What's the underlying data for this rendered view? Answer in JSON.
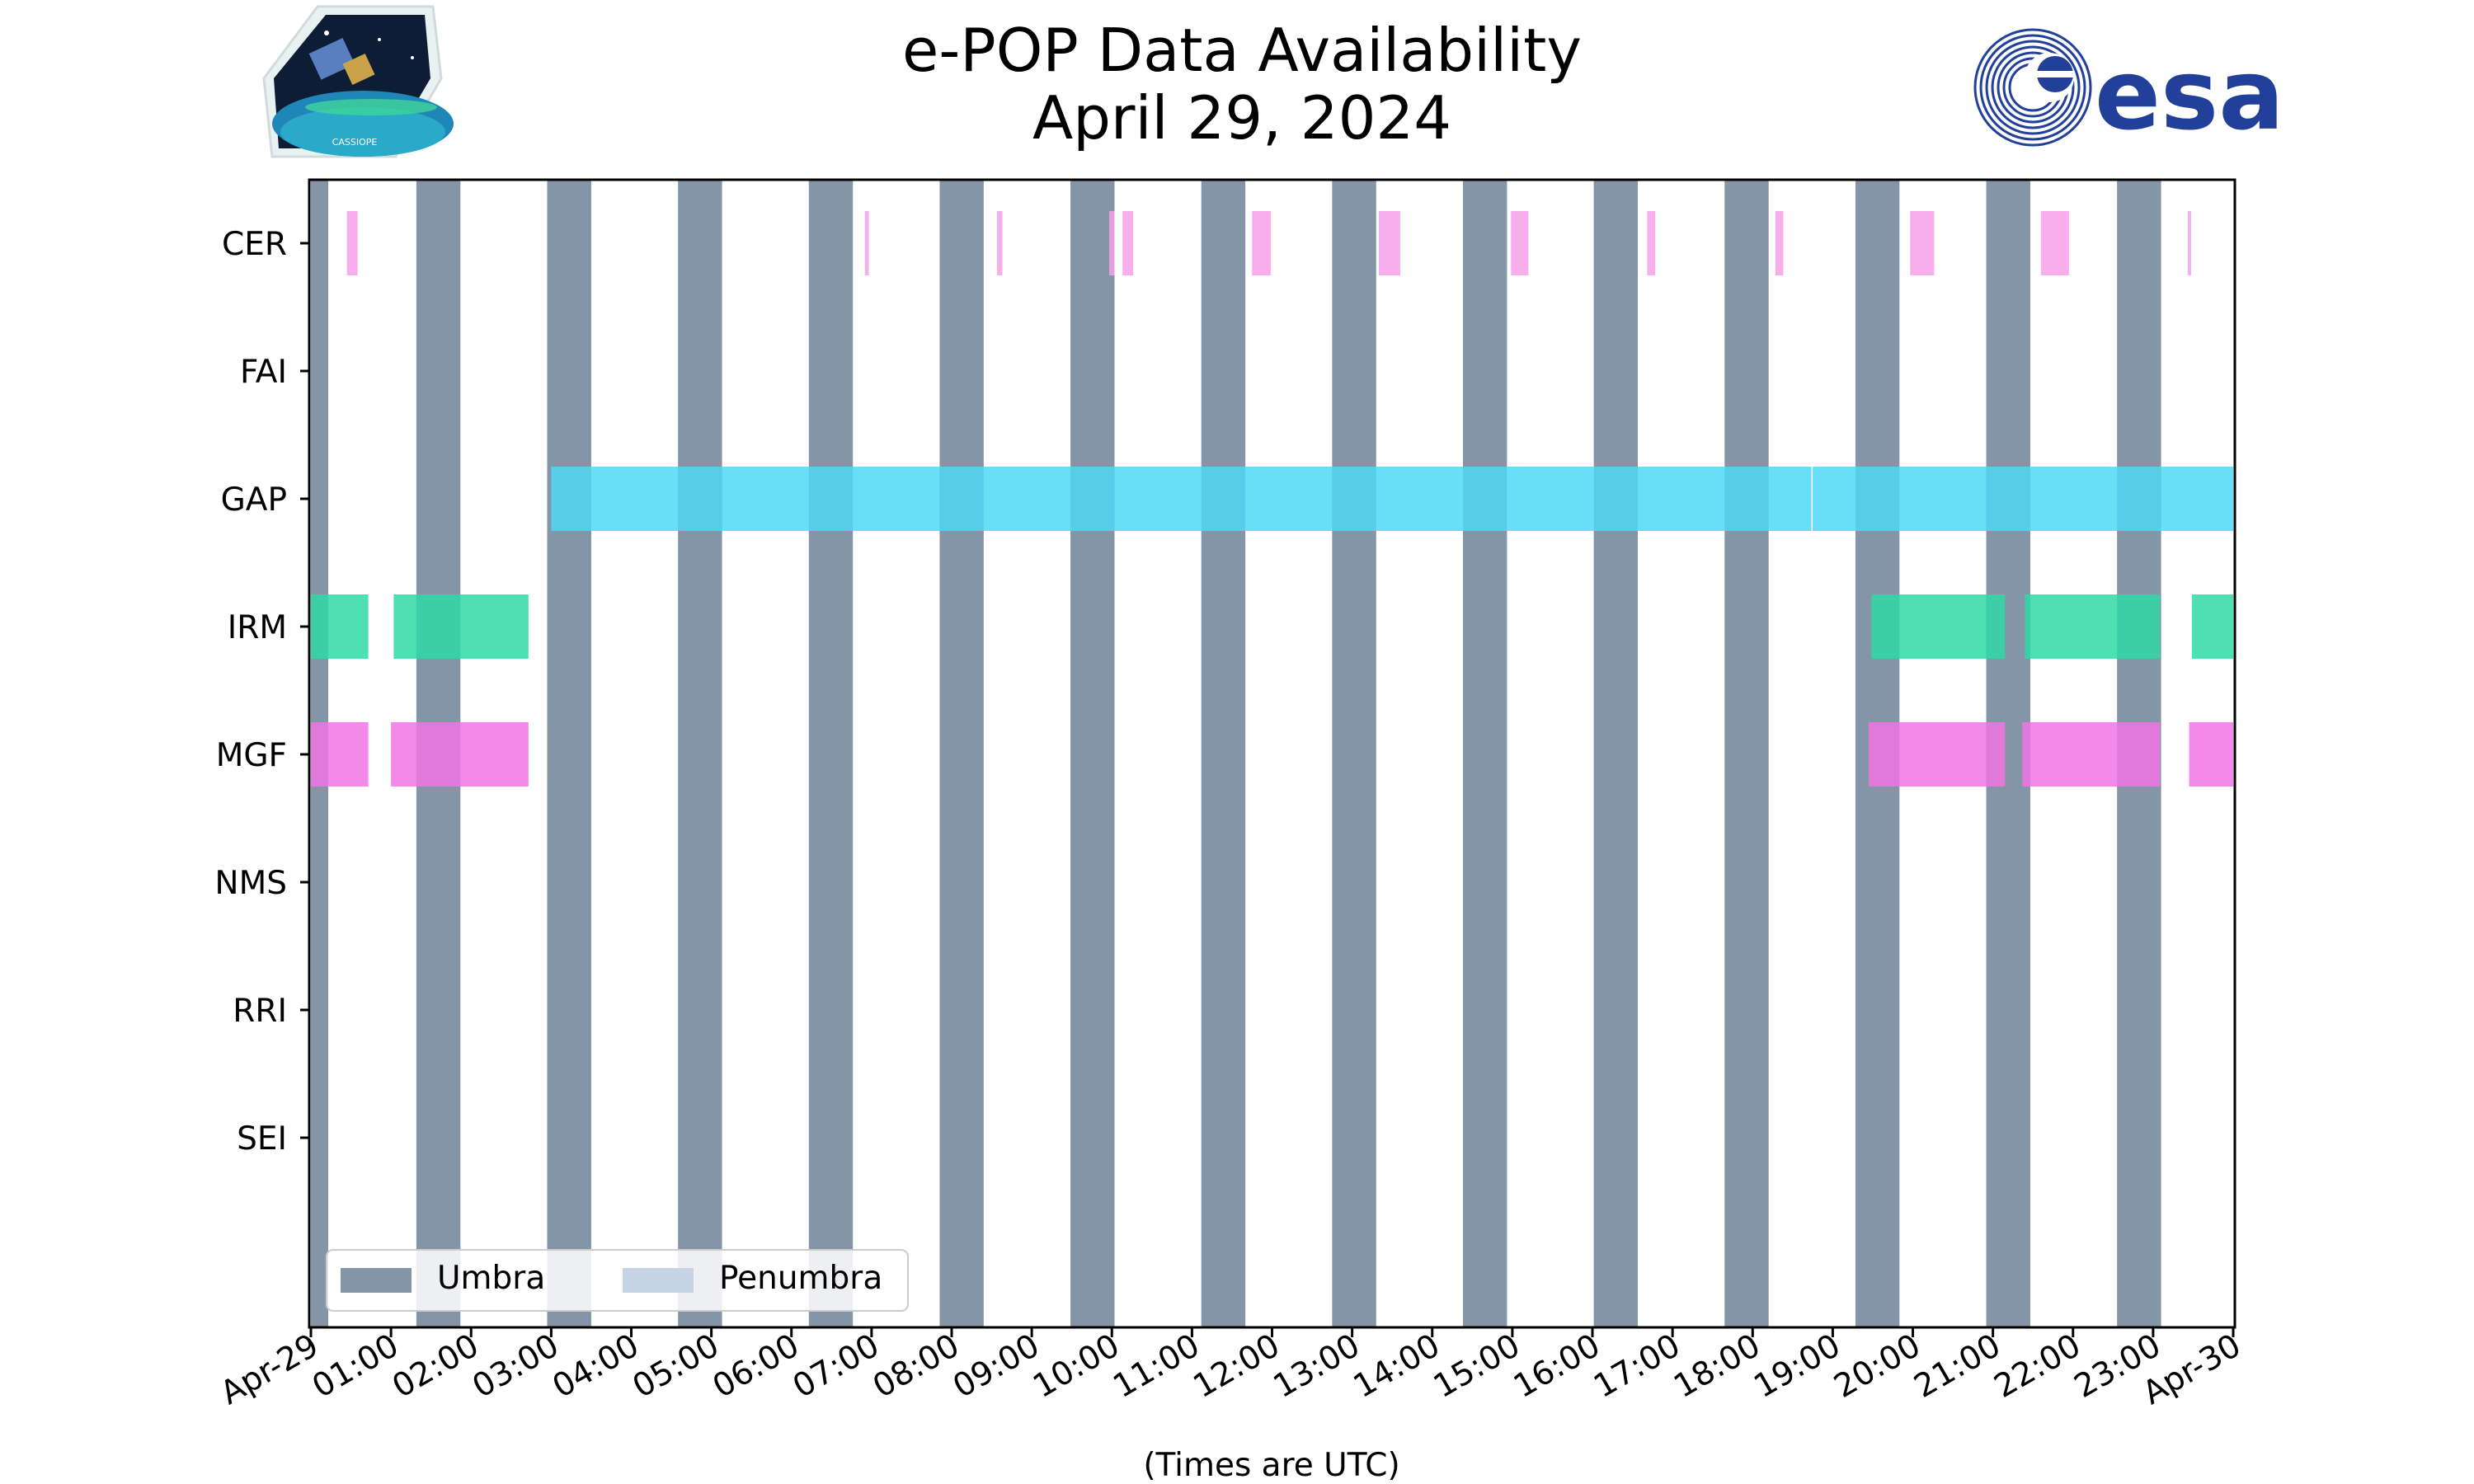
{
  "header": {
    "title": "e-POP Data Availability",
    "subtitle": "April 29, 2024",
    "logo_left_text": "CASSIOPE",
    "logo_right_text": "esa"
  },
  "chart_data": {
    "type": "timeline",
    "title": "e-POP Data Availability",
    "subtitle": "April 29, 2024",
    "xlabel": "(Times are UTC)",
    "ylabel": "",
    "xlim": [
      "00:00",
      "24:00"
    ],
    "x_ticks": [
      "Apr-29",
      "01:00",
      "02:00",
      "03:00",
      "04:00",
      "05:00",
      "06:00",
      "07:00",
      "08:00",
      "09:00",
      "10:00",
      "11:00",
      "12:00",
      "13:00",
      "14:00",
      "15:00",
      "16:00",
      "17:00",
      "18:00",
      "19:00",
      "20:00",
      "21:00",
      "22:00",
      "23:00",
      "Apr-30"
    ],
    "categories": [
      "CER",
      "FAI",
      "GAP",
      "IRM",
      "MGF",
      "NMS",
      "RRI",
      "SEI"
    ],
    "legend": {
      "placement": "lower-left",
      "entries": [
        {
          "label": "Umbra",
          "color": "#8495a8"
        },
        {
          "label": "Penumbra",
          "color": "#c6d4e6"
        }
      ]
    },
    "umbra": [
      [
        "00:00",
        "00:13"
      ],
      [
        "01:19",
        "01:52"
      ],
      [
        "02:57",
        "03:30"
      ],
      [
        "04:35",
        "05:08"
      ],
      [
        "06:13",
        "06:46"
      ],
      [
        "07:51",
        "08:24"
      ],
      [
        "09:29",
        "10:02"
      ],
      [
        "11:07",
        "11:40"
      ],
      [
        "12:45",
        "13:18"
      ],
      [
        "14:23",
        "14:56"
      ],
      [
        "16:01",
        "16:34"
      ],
      [
        "17:39",
        "18:12"
      ],
      [
        "19:17",
        "19:50"
      ],
      [
        "20:55",
        "21:28"
      ],
      [
        "22:33",
        "23:06"
      ]
    ],
    "series": [
      {
        "name": "CER",
        "color": "#f7a0ea",
        "intervals": [
          [
            "00:27",
            "00:35"
          ],
          [
            "06:55",
            "06:58"
          ],
          [
            "08:34",
            "08:38"
          ],
          [
            "09:58",
            "10:02"
          ],
          [
            "10:08",
            "10:16"
          ],
          [
            "11:45",
            "11:59"
          ],
          [
            "13:20",
            "13:36"
          ],
          [
            "14:59",
            "15:12"
          ],
          [
            "16:41",
            "16:47"
          ],
          [
            "18:17",
            "18:23"
          ],
          [
            "19:58",
            "20:16"
          ],
          [
            "21:36",
            "21:57"
          ],
          [
            "23:26",
            "23:28"
          ]
        ]
      },
      {
        "name": "FAI",
        "color": "#3bd6a8",
        "intervals": []
      },
      {
        "name": "GAP",
        "color": "#4dd8f6",
        "intervals": [
          [
            "03:00",
            "18:44"
          ],
          [
            "18:45",
            "24:00"
          ]
        ]
      },
      {
        "name": "IRM",
        "color": "#2fd9a5",
        "intervals": [
          [
            "00:00",
            "00:43"
          ],
          [
            "01:02",
            "02:43"
          ],
          [
            "19:29",
            "21:09"
          ],
          [
            "21:24",
            "23:05"
          ],
          [
            "23:29",
            "24:00"
          ]
        ]
      },
      {
        "name": "MGF",
        "color": "#f174e4",
        "intervals": [
          [
            "00:00",
            "00:43"
          ],
          [
            "01:00",
            "02:43"
          ],
          [
            "19:27",
            "21:09"
          ],
          [
            "21:22",
            "23:05"
          ],
          [
            "23:27",
            "24:00"
          ]
        ]
      },
      {
        "name": "NMS",
        "color": "#cccccc",
        "intervals": []
      },
      {
        "name": "RRI",
        "color": "#cccccc",
        "intervals": []
      },
      {
        "name": "SEI",
        "color": "#cccccc",
        "intervals": []
      }
    ]
  }
}
